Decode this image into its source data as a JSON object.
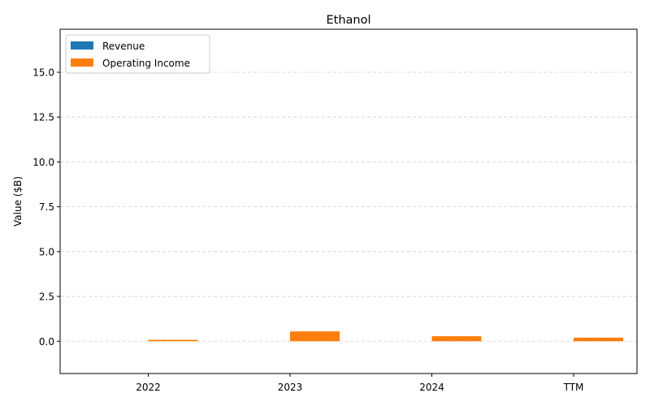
{
  "chart_data": {
    "type": "bar",
    "title": "Ethanol",
    "xlabel": "",
    "ylabel": "Value ($B)",
    "categories": [
      "2022",
      "2023",
      "2024",
      "TTM"
    ],
    "series": [
      {
        "name": "Revenue",
        "color": "#1f77b4",
        "values": [
          0,
          0,
          0,
          0
        ]
      },
      {
        "name": "Operating Income",
        "color": "#ff7f0e",
        "values": [
          0.08,
          0.55,
          0.28,
          0.2
        ]
      }
    ],
    "ylim": [
      -1.8,
      17.4
    ],
    "yticks": [
      0.0,
      2.5,
      5.0,
      7.5,
      10.0,
      12.5,
      15.0
    ],
    "ytick_labels": [
      "0.0",
      "2.5",
      "5.0",
      "7.5",
      "10.0",
      "12.5",
      "15.0"
    ],
    "grid": "y-dashed",
    "legend": "upper-left"
  }
}
